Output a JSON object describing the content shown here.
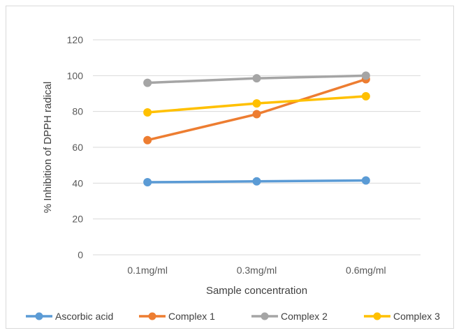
{
  "chart_data": {
    "type": "line",
    "title": "",
    "xlabel": "Sample concentration",
    "ylabel": "% Inhibition of DPPH radical",
    "categories": [
      "0.1mg/ml",
      "0.3mg/ml",
      "0.6mg/ml"
    ],
    "ylim": [
      0,
      120
    ],
    "yticks": [
      0,
      20,
      40,
      60,
      80,
      100,
      120
    ],
    "grid": true,
    "legend_position": "bottom",
    "series": [
      {
        "name": "Ascorbic acid",
        "color": "#5B9BD5",
        "values": [
          40.5,
          41,
          41.5
        ]
      },
      {
        "name": "Complex 1",
        "color": "#ED7D31",
        "values": [
          64,
          78.5,
          98
        ]
      },
      {
        "name": "Complex 2",
        "color": "#A5A5A5",
        "values": [
          96,
          98.5,
          100
        ]
      },
      {
        "name": "Complex 3",
        "color": "#FFC000",
        "values": [
          79.5,
          84.5,
          88.5
        ]
      }
    ]
  }
}
